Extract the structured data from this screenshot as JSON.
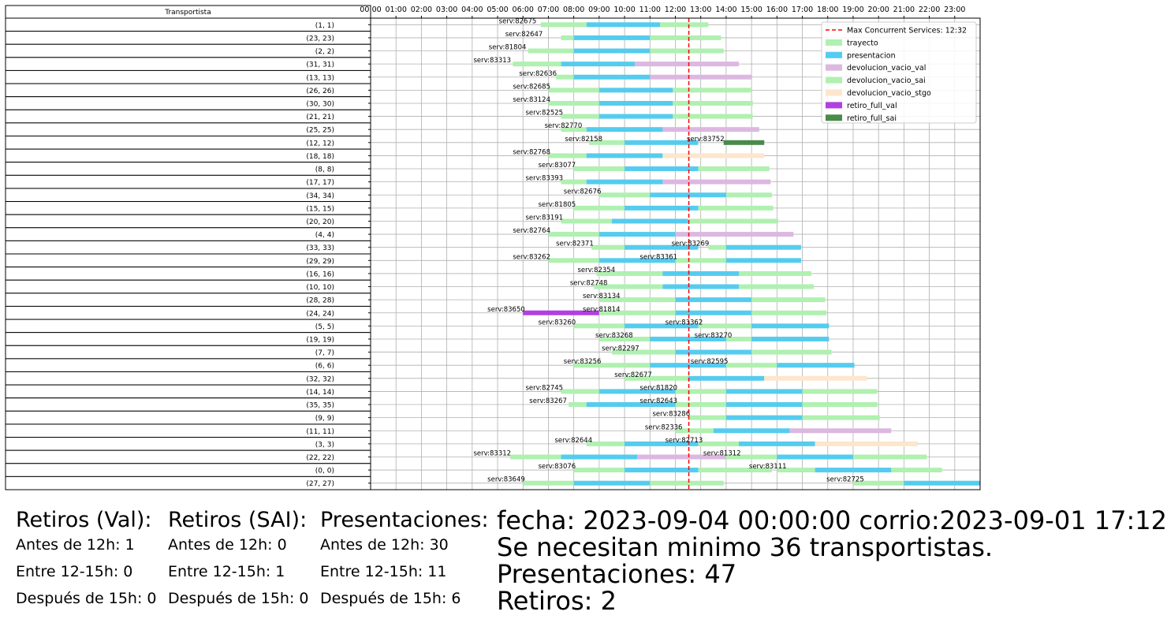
{
  "chart_data": {
    "type": "gantt",
    "table_header": "Transportista",
    "xlim_hours": [
      0,
      24
    ],
    "hour_tick_labels": [
      "00:00",
      "01:00",
      "02:00",
      "03:00",
      "04:00",
      "05:00",
      "06:00",
      "07:00",
      "08:00",
      "09:00",
      "10:00",
      "11:00",
      "12:00",
      "13:00",
      "14:00",
      "15:00",
      "16:00",
      "17:00",
      "18:00",
      "19:00",
      "20:00",
      "21:00",
      "22:00",
      "23:00"
    ],
    "grid": true,
    "max_concurrent": {
      "label": "Max Concurrent Services: 12:32",
      "hour": 12.53,
      "color": "#ff0000"
    },
    "legend_position": "top-right",
    "categories": [
      {
        "name": "trayecto",
        "color": "#b0f0b0"
      },
      {
        "name": "presentacion",
        "color": "#55ccee"
      },
      {
        "name": "devolucion_vacio_val",
        "color": "#dcb8e0"
      },
      {
        "name": "devolucion_vacio_sai",
        "color": "#b0f0b0"
      },
      {
        "name": "devolucion_vacio_stgo",
        "color": "#fde6cc"
      },
      {
        "name": "retiro_full_val",
        "color": "#b040e0"
      },
      {
        "name": "retiro_full_sai",
        "color": "#4a8a4a"
      }
    ],
    "rows": [
      {
        "label": "(1, 1)",
        "segments": [
          [
            6.7,
            8.5,
            0
          ],
          [
            8.5,
            11.4,
            1
          ],
          [
            11.4,
            13.3,
            3
          ]
        ],
        "texts": [
          {
            "t": "serv:82675",
            "h": 5.05
          }
        ]
      },
      {
        "label": "(23, 23)",
        "segments": [
          [
            7.5,
            8,
            0
          ],
          [
            8,
            11,
            1
          ],
          [
            11,
            13.8,
            3
          ]
        ],
        "texts": [
          {
            "t": "serv:82647",
            "h": 5.3
          }
        ]
      },
      {
        "label": "(2, 2)",
        "segments": [
          [
            6.2,
            8,
            0
          ],
          [
            8,
            11,
            1
          ],
          [
            11,
            13.9,
            3
          ]
        ],
        "texts": [
          {
            "t": "serv:81804",
            "h": 4.65
          }
        ]
      },
      {
        "label": "(31, 31)",
        "segments": [
          [
            5.6,
            7.5,
            0
          ],
          [
            7.5,
            10.4,
            1
          ],
          [
            10.4,
            14.5,
            2
          ]
        ],
        "texts": [
          {
            "t": "serv:83313",
            "h": 4.05
          }
        ]
      },
      {
        "label": "(13, 13)",
        "segments": [
          [
            7.3,
            8,
            0
          ],
          [
            8,
            11,
            1
          ],
          [
            11,
            15,
            2
          ]
        ],
        "texts": [
          {
            "t": "serv:82636",
            "h": 5.85
          }
        ]
      },
      {
        "label": "(26, 26)",
        "segments": [
          [
            7,
            9,
            0
          ],
          [
            9,
            11.9,
            1
          ],
          [
            11.9,
            15,
            3
          ]
        ],
        "texts": [
          {
            "t": "serv:82685",
            "h": 5.6
          }
        ]
      },
      {
        "label": "(30, 30)",
        "segments": [
          [
            7,
            9,
            0
          ],
          [
            9,
            11.9,
            1
          ],
          [
            11.9,
            15.05,
            3
          ]
        ],
        "texts": [
          {
            "t": "serv:83124",
            "h": 5.6
          }
        ]
      },
      {
        "label": "(21, 21)",
        "segments": [
          [
            7.5,
            9,
            0
          ],
          [
            9,
            11.9,
            1
          ],
          [
            11.9,
            15.05,
            3
          ]
        ],
        "texts": [
          {
            "t": "serv:82525",
            "h": 6.1
          }
        ]
      },
      {
        "label": "(25, 25)",
        "segments": [
          [
            7.5,
            8.5,
            0
          ],
          [
            8.5,
            11.5,
            1
          ],
          [
            11.5,
            15.3,
            2
          ]
        ],
        "texts": [
          {
            "t": "serv:82770",
            "h": 6.85
          }
        ]
      },
      {
        "label": "(12, 12)",
        "segments": [
          [
            8.6,
            10,
            0
          ],
          [
            10,
            12.5,
            1
          ],
          [
            12.5,
            12.9,
            1
          ],
          [
            13.9,
            15.5,
            6
          ]
        ],
        "texts": [
          {
            "t": "serv:82158",
            "h": 7.65
          },
          {
            "t": "serv:83752",
            "h": 12.45
          }
        ]
      },
      {
        "label": "(18, 18)",
        "segments": [
          [
            7,
            8.5,
            0
          ],
          [
            8.5,
            11.5,
            1
          ],
          [
            11.5,
            15.5,
            4
          ]
        ],
        "texts": [
          {
            "t": "serv:82768",
            "h": 5.6
          }
        ]
      },
      {
        "label": "(8, 8)",
        "segments": [
          [
            8,
            10,
            0
          ],
          [
            10,
            12.9,
            1
          ],
          [
            12.9,
            15.7,
            3
          ]
        ],
        "texts": [
          {
            "t": "serv:83077",
            "h": 6.6
          }
        ]
      },
      {
        "label": "(17, 17)",
        "segments": [
          [
            7.5,
            8.5,
            0
          ],
          [
            8.5,
            11.5,
            1
          ],
          [
            11.5,
            15.75,
            2
          ]
        ],
        "texts": [
          {
            "t": "serv:83393",
            "h": 6.1
          }
        ]
      },
      {
        "label": "(34, 34)",
        "segments": [
          [
            9,
            11,
            0
          ],
          [
            11,
            14,
            1
          ],
          [
            14,
            15.8,
            3
          ]
        ],
        "texts": [
          {
            "t": "serv:82676",
            "h": 7.6
          }
        ]
      },
      {
        "label": "(15, 15)",
        "segments": [
          [
            8,
            10,
            0
          ],
          [
            10,
            12.9,
            1
          ],
          [
            12.9,
            15.85,
            3
          ]
        ],
        "texts": [
          {
            "t": "serv:81805",
            "h": 6.6
          }
        ]
      },
      {
        "label": "(20, 20)",
        "segments": [
          [
            7.5,
            9.5,
            0
          ],
          [
            9.5,
            12.5,
            1
          ],
          [
            12.5,
            16.05,
            3
          ]
        ],
        "texts": [
          {
            "t": "serv:83191",
            "h": 6.1
          }
        ]
      },
      {
        "label": "(4, 4)",
        "segments": [
          [
            7,
            9,
            0
          ],
          [
            9,
            12,
            1
          ],
          [
            12,
            16.65,
            2
          ]
        ],
        "texts": [
          {
            "t": "serv:82764",
            "h": 5.6
          }
        ]
      },
      {
        "label": "(33, 33)",
        "segments": [
          [
            8.7,
            10,
            0
          ],
          [
            10,
            12.9,
            1
          ],
          [
            13.3,
            14,
            0
          ],
          [
            14,
            16.95,
            1
          ]
        ],
        "texts": [
          {
            "t": "serv:82371",
            "h": 7.3
          },
          {
            "t": "serv:83269",
            "h": 11.85
          }
        ]
      },
      {
        "label": "(29, 29)",
        "segments": [
          [
            7,
            9,
            0
          ],
          [
            9,
            12,
            1
          ],
          [
            12,
            14,
            0
          ],
          [
            14,
            16.95,
            1
          ]
        ],
        "texts": [
          {
            "t": "serv:83262",
            "h": 5.6
          },
          {
            "t": "serv:83361",
            "h": 10.6
          }
        ]
      },
      {
        "label": "(16, 16)",
        "segments": [
          [
            8.9,
            11.5,
            0
          ],
          [
            11.5,
            14.5,
            1
          ],
          [
            14.5,
            17.35,
            3
          ]
        ],
        "texts": [
          {
            "t": "serv:82354",
            "h": 8.15
          }
        ]
      },
      {
        "label": "(10, 10)",
        "segments": [
          [
            8.8,
            11.5,
            0
          ],
          [
            11.5,
            14.5,
            1
          ],
          [
            14.5,
            17.45,
            3
          ]
        ],
        "texts": [
          {
            "t": "serv:82748",
            "h": 7.85
          }
        ]
      },
      {
        "label": "(28, 28)",
        "segments": [
          [
            9,
            12,
            0
          ],
          [
            12,
            15,
            1
          ],
          [
            15,
            17.9,
            3
          ]
        ],
        "texts": [
          {
            "t": "serv:83134",
            "h": 8.35
          }
        ]
      },
      {
        "label": "(24, 24)",
        "segments": [
          [
            6,
            9,
            5
          ],
          [
            9,
            12,
            0
          ],
          [
            12,
            15,
            1
          ],
          [
            15,
            17.95,
            3
          ]
        ],
        "texts": [
          {
            "t": "serv:83650",
            "h": 4.6
          },
          {
            "t": "serv:81814",
            "h": 8.35
          }
        ]
      },
      {
        "label": "(5, 5)",
        "segments": [
          [
            8,
            10,
            0
          ],
          [
            10,
            12.9,
            1
          ],
          [
            12.9,
            15,
            3
          ],
          [
            15,
            18.05,
            1
          ]
        ],
        "texts": [
          {
            "t": "serv:83260",
            "h": 6.6
          },
          {
            "t": "serv:83362",
            "h": 11.6
          }
        ]
      },
      {
        "label": "(19, 19)",
        "segments": [
          [
            9,
            11,
            0
          ],
          [
            11,
            14,
            1
          ],
          [
            14,
            15,
            0
          ],
          [
            15,
            18.05,
            1
          ]
        ],
        "texts": [
          {
            "t": "serv:83268",
            "h": 8.85
          },
          {
            "t": "serv:83270",
            "h": 12.75
          }
        ]
      },
      {
        "label": "(7, 7)",
        "segments": [
          [
            9.5,
            12,
            0
          ],
          [
            12,
            15,
            1
          ],
          [
            15,
            18.15,
            3
          ]
        ],
        "texts": [
          {
            "t": "serv:82297",
            "h": 9.1
          }
        ]
      },
      {
        "label": "(6, 6)",
        "segments": [
          [
            8,
            11,
            0
          ],
          [
            11,
            14,
            1
          ],
          [
            14,
            16,
            0
          ],
          [
            16,
            19.05,
            1
          ]
        ],
        "texts": [
          {
            "t": "serv:83256",
            "h": 7.6
          },
          {
            "t": "serv:82595",
            "h": 12.6
          }
        ]
      },
      {
        "label": "(32, 32)",
        "segments": [
          [
            10,
            12.5,
            0
          ],
          [
            12.5,
            15.5,
            1
          ],
          [
            15.5,
            19.55,
            4
          ]
        ],
        "texts": [
          {
            "t": "serv:82677",
            "h": 9.6
          }
        ]
      },
      {
        "label": "(14, 14)",
        "segments": [
          [
            7.5,
            9,
            0
          ],
          [
            9,
            12,
            1
          ],
          [
            12,
            14,
            0
          ],
          [
            14,
            17,
            1
          ],
          [
            17,
            19.95,
            3
          ]
        ],
        "texts": [
          {
            "t": "serv:82745",
            "h": 6.1
          },
          {
            "t": "serv:81820",
            "h": 10.6
          }
        ]
      },
      {
        "label": "(35, 35)",
        "segments": [
          [
            7.8,
            8.5,
            0
          ],
          [
            8.5,
            12,
            1
          ],
          [
            12,
            14,
            0
          ],
          [
            14,
            17,
            1
          ],
          [
            17,
            19.95,
            3
          ]
        ],
        "texts": [
          {
            "t": "serv:83267",
            "h": 6.25
          },
          {
            "t": "serv:82643",
            "h": 10.6
          }
        ]
      },
      {
        "label": "(9, 9)",
        "segments": [
          [
            12.5,
            14,
            0
          ],
          [
            14,
            17,
            1
          ],
          [
            17,
            20.05,
            3
          ]
        ],
        "texts": [
          {
            "t": "serv:83286",
            "h": 11.1
          }
        ]
      },
      {
        "label": "(11, 11)",
        "segments": [
          [
            12,
            13.5,
            0
          ],
          [
            13.5,
            16.5,
            1
          ],
          [
            16.5,
            20.5,
            2
          ]
        ],
        "texts": [
          {
            "t": "serv:82336",
            "h": 10.8
          }
        ]
      },
      {
        "label": "(3, 3)",
        "segments": [
          [
            8.5,
            10,
            0
          ],
          [
            10,
            12.9,
            1
          ],
          [
            12.9,
            14.5,
            3
          ],
          [
            14.5,
            17.5,
            1
          ],
          [
            17.5,
            21.55,
            4
          ]
        ],
        "texts": [
          {
            "t": "serv:82644",
            "h": 7.25
          },
          {
            "t": "serv:82713",
            "h": 11.6
          }
        ]
      },
      {
        "label": "(22, 22)",
        "segments": [
          [
            5.5,
            7.5,
            0
          ],
          [
            7.5,
            10.5,
            1
          ],
          [
            10.5,
            14,
            2
          ],
          [
            14,
            16,
            0
          ],
          [
            16,
            19,
            1
          ],
          [
            19,
            21.9,
            3
          ]
        ],
        "texts": [
          {
            "t": "serv:83312",
            "h": 4.05
          },
          {
            "t": "serv:81312",
            "h": 13.1
          }
        ]
      },
      {
        "label": "(0, 0)",
        "segments": [
          [
            8,
            10,
            0
          ],
          [
            10,
            12.9,
            1
          ],
          [
            12.9,
            15.8,
            3
          ],
          [
            16,
            17.5,
            0
          ],
          [
            17.5,
            20.5,
            1
          ],
          [
            20.5,
            22.5,
            3
          ]
        ],
        "texts": [
          {
            "t": "serv:83076",
            "h": 6.6
          },
          {
            "t": "serv:83111",
            "h": 14.9
          }
        ]
      },
      {
        "label": "(27, 27)",
        "segments": [
          [
            6,
            8,
            0
          ],
          [
            8,
            11,
            1
          ],
          [
            11,
            13.9,
            3
          ],
          [
            19,
            21,
            0
          ],
          [
            21,
            24,
            1
          ]
        ],
        "texts": [
          {
            "t": "serv:83649",
            "h": 4.6
          },
          {
            "t": "serv:82725",
            "h": 17.95
          }
        ]
      }
    ]
  },
  "stats": {
    "retiros_val": {
      "title": "Retiros (Val):",
      "antes": "Antes de 12h: 1",
      "entre": "Entre 12-15h: 0",
      "despues": "Después de 15h: 0"
    },
    "retiros_sai": {
      "title": "Retiros (SAI):",
      "antes": "Antes de 12h: 0",
      "entre": "Entre 12-15h: 1",
      "despues": "Después de 15h: 0"
    },
    "presentaciones": {
      "title": "Presentaciones:",
      "antes": "Antes de 12h: 30",
      "entre": "Entre 12-15h: 11",
      "despues": "Después de 15h: 6"
    },
    "summary": {
      "fecha": "fecha: 2023-09-04 00:00:00  corrio:2023-09-01 17:12",
      "minimo": "Se necesitan minimo 36 transportistas.",
      "presentaciones": "Presentaciones: 47",
      "retiros": "Retiros: 2"
    }
  }
}
